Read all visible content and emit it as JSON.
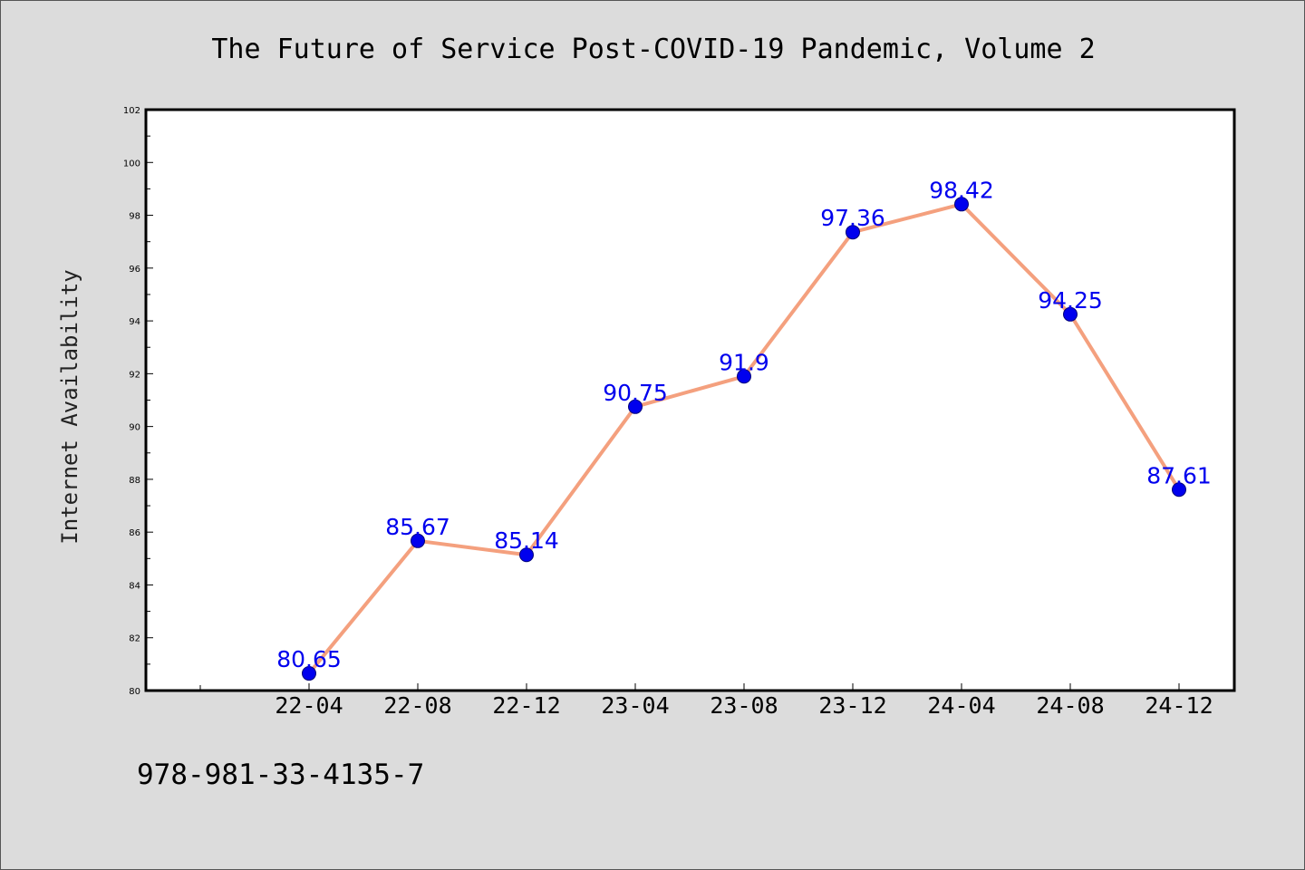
{
  "chart_data": {
    "type": "line",
    "title": "The Future of Service Post-COVID-19 Pandemic, Volume 2",
    "xlabel": "",
    "ylabel": "Internet Availability",
    "categories": [
      "22-04",
      "22-08",
      "22-12",
      "23-04",
      "23-08",
      "23-12",
      "24-04",
      "24-08",
      "24-12"
    ],
    "series": [
      {
        "values": [
          80.65,
          85.67,
          85.14,
          90.75,
          91.9,
          97.36,
          98.42,
          94.25,
          87.61
        ],
        "labels": [
          "80.65",
          "85.67",
          "85.14",
          "90.75",
          "91.9",
          "97.36",
          "98.42",
          "94.25",
          "87.61"
        ]
      }
    ],
    "ylim": [
      80,
      102
    ],
    "yticks": [
      80,
      82,
      84,
      86,
      88,
      90,
      92,
      94,
      96,
      98,
      100,
      102
    ],
    "grid": false,
    "legend": "none",
    "colors": {
      "line": "#f4a07e",
      "marker": "#0000ee",
      "label": "#0000ee",
      "background": "#dcdcdc",
      "plot_background": "#ffffff"
    }
  },
  "footnote": "978-981-33-4135-7"
}
